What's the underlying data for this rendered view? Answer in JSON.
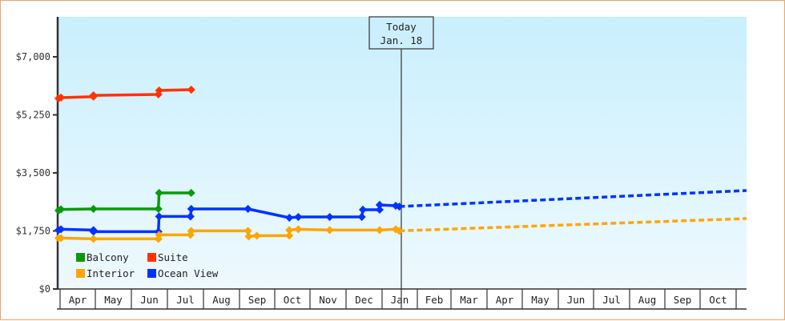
{
  "chart_data": {
    "type": "line",
    "title": "",
    "xlabel": "",
    "ylabel": "",
    "ylim": [
      0,
      8000
    ],
    "yticks": [
      {
        "value": 0,
        "label": "$0"
      },
      {
        "value": 1750,
        "label": "$1,750"
      },
      {
        "value": 3500,
        "label": "$3,500"
      },
      {
        "value": 5250,
        "label": "$5,250"
      },
      {
        "value": 7000,
        "label": "$7,000"
      }
    ],
    "x_months": [
      "Apr",
      "May",
      "Jun",
      "Jul",
      "Aug",
      "Sep",
      "Oct",
      "Nov",
      "Dec",
      "Jan",
      "Feb",
      "Mar",
      "Apr",
      "May",
      "Jun",
      "Jul",
      "Aug",
      "Sep",
      "Oct"
    ],
    "grid": false,
    "legend_position": "lower-left inside plot",
    "legend": [
      {
        "name": "Balcony",
        "color": "#0A9A0A"
      },
      {
        "name": "Suite",
        "color": "#FF3300"
      },
      {
        "name": "Interior",
        "color": "#FFA500"
      },
      {
        "name": "Ocean View",
        "color": "#0033FF"
      }
    ],
    "today_marker": {
      "line1": "Today",
      "line2": "Jan. 18",
      "month_position": 9.55
    },
    "series": [
      {
        "name": "Suite",
        "color": "#FF3300",
        "points": [
          [
            0.0,
            5745
          ],
          [
            0.07,
            5770
          ],
          [
            0.98,
            5800
          ],
          [
            0.98,
            5840
          ],
          [
            2.8,
            5866
          ],
          [
            2.82,
            5986
          ],
          [
            3.72,
            6010
          ]
        ]
      },
      {
        "name": "Balcony",
        "color": "#0A9A0A",
        "points": [
          [
            0.0,
            2366
          ],
          [
            0.07,
            2400
          ],
          [
            0.98,
            2414
          ],
          [
            2.8,
            2414
          ],
          [
            2.82,
            2897
          ],
          [
            3.72,
            2897
          ]
        ]
      },
      {
        "name": "Ocean View",
        "color": "#0033FF",
        "points": [
          [
            0.0,
            1776
          ],
          [
            0.07,
            1800
          ],
          [
            0.98,
            1776
          ],
          [
            0.98,
            1728
          ],
          [
            2.8,
            1728
          ],
          [
            2.82,
            2187
          ],
          [
            3.7,
            2187
          ],
          [
            3.72,
            2414
          ],
          [
            5.31,
            2414
          ],
          [
            6.47,
            2148
          ],
          [
            6.72,
            2172
          ],
          [
            7.6,
            2172
          ],
          [
            8.5,
            2172
          ],
          [
            8.53,
            2390
          ],
          [
            9.0,
            2390
          ],
          [
            9.0,
            2535
          ],
          [
            9.45,
            2510
          ],
          [
            9.55,
            2486
          ]
        ],
        "forecast": [
          [
            9.55,
            2486
          ],
          [
            19.2,
            2969
          ]
        ]
      },
      {
        "name": "Interior",
        "color": "#FFA500",
        "points": [
          [
            0.0,
            1535
          ],
          [
            0.07,
            1535
          ],
          [
            0.98,
            1510
          ],
          [
            2.8,
            1510
          ],
          [
            2.82,
            1631
          ],
          [
            3.7,
            1631
          ],
          [
            3.72,
            1752
          ],
          [
            5.31,
            1752
          ],
          [
            5.33,
            1583
          ],
          [
            5.56,
            1607
          ],
          [
            6.47,
            1607
          ],
          [
            6.47,
            1776
          ],
          [
            6.72,
            1800
          ],
          [
            7.6,
            1776
          ],
          [
            9.0,
            1776
          ],
          [
            9.45,
            1800
          ],
          [
            9.55,
            1752
          ]
        ],
        "forecast": [
          [
            9.55,
            1752
          ],
          [
            19.2,
            2124
          ]
        ]
      }
    ]
  }
}
